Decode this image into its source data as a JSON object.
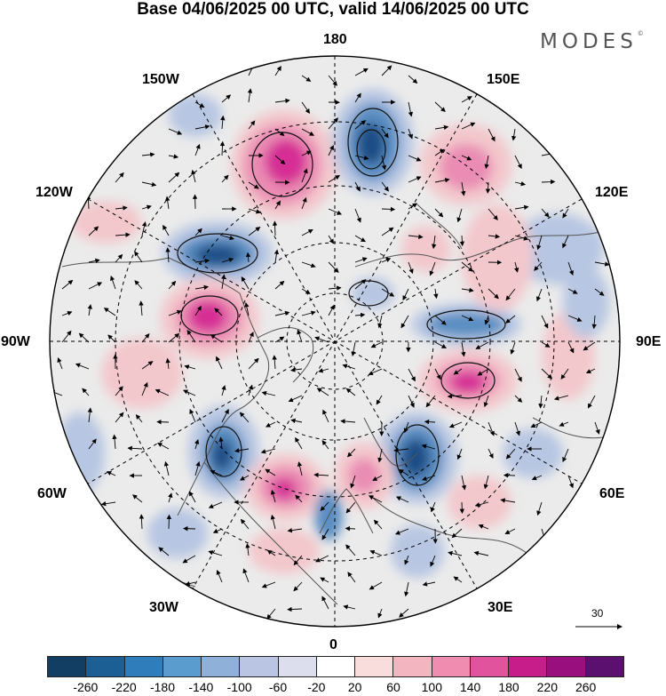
{
  "title": "Base 04/06/2025 00 UTC, valid 14/06/2025 00 UTC",
  "brand": {
    "name": "MODES",
    "mark": "©"
  },
  "map": {
    "projection": "north polar stereographic",
    "longitude_labels": {
      "top": "180",
      "bottom": "0",
      "left": "90W",
      "right": "90E",
      "upper_left_1": "150W",
      "upper_left_2": "120W",
      "lower_left_1": "60W",
      "lower_left_2": "30W",
      "upper_right_1": "150E",
      "upper_right_2": "120E",
      "lower_right_1": "60E",
      "lower_right_2": "30E"
    },
    "wind_reference_label": "30",
    "anomaly_colors": {
      "negative_strong": "#1a4e86",
      "negative": "#5a8ec2",
      "negative_weak": "#b7c6e2",
      "neutral": "#ebebeb",
      "positive_weak": "#f3c8cc",
      "positive": "#ea8cb4",
      "positive_strong": "#d62f95"
    }
  },
  "colorbar": {
    "colors": [
      "#123e63",
      "#1c5f95",
      "#2f7dbb",
      "#5a9ccd",
      "#8fb1d9",
      "#b9c5e2",
      "#dcdded",
      "#ffffff",
      "#f9dcdc",
      "#f3b6c0",
      "#ef8cb0",
      "#e2539e",
      "#c61d8a",
      "#990f7e",
      "#5b0f6e"
    ],
    "ticks": [
      "-260",
      "-220",
      "-180",
      "-140",
      "-100",
      "-60",
      "-20",
      "20",
      "60",
      "100",
      "140",
      "180",
      "220",
      "260"
    ]
  }
}
